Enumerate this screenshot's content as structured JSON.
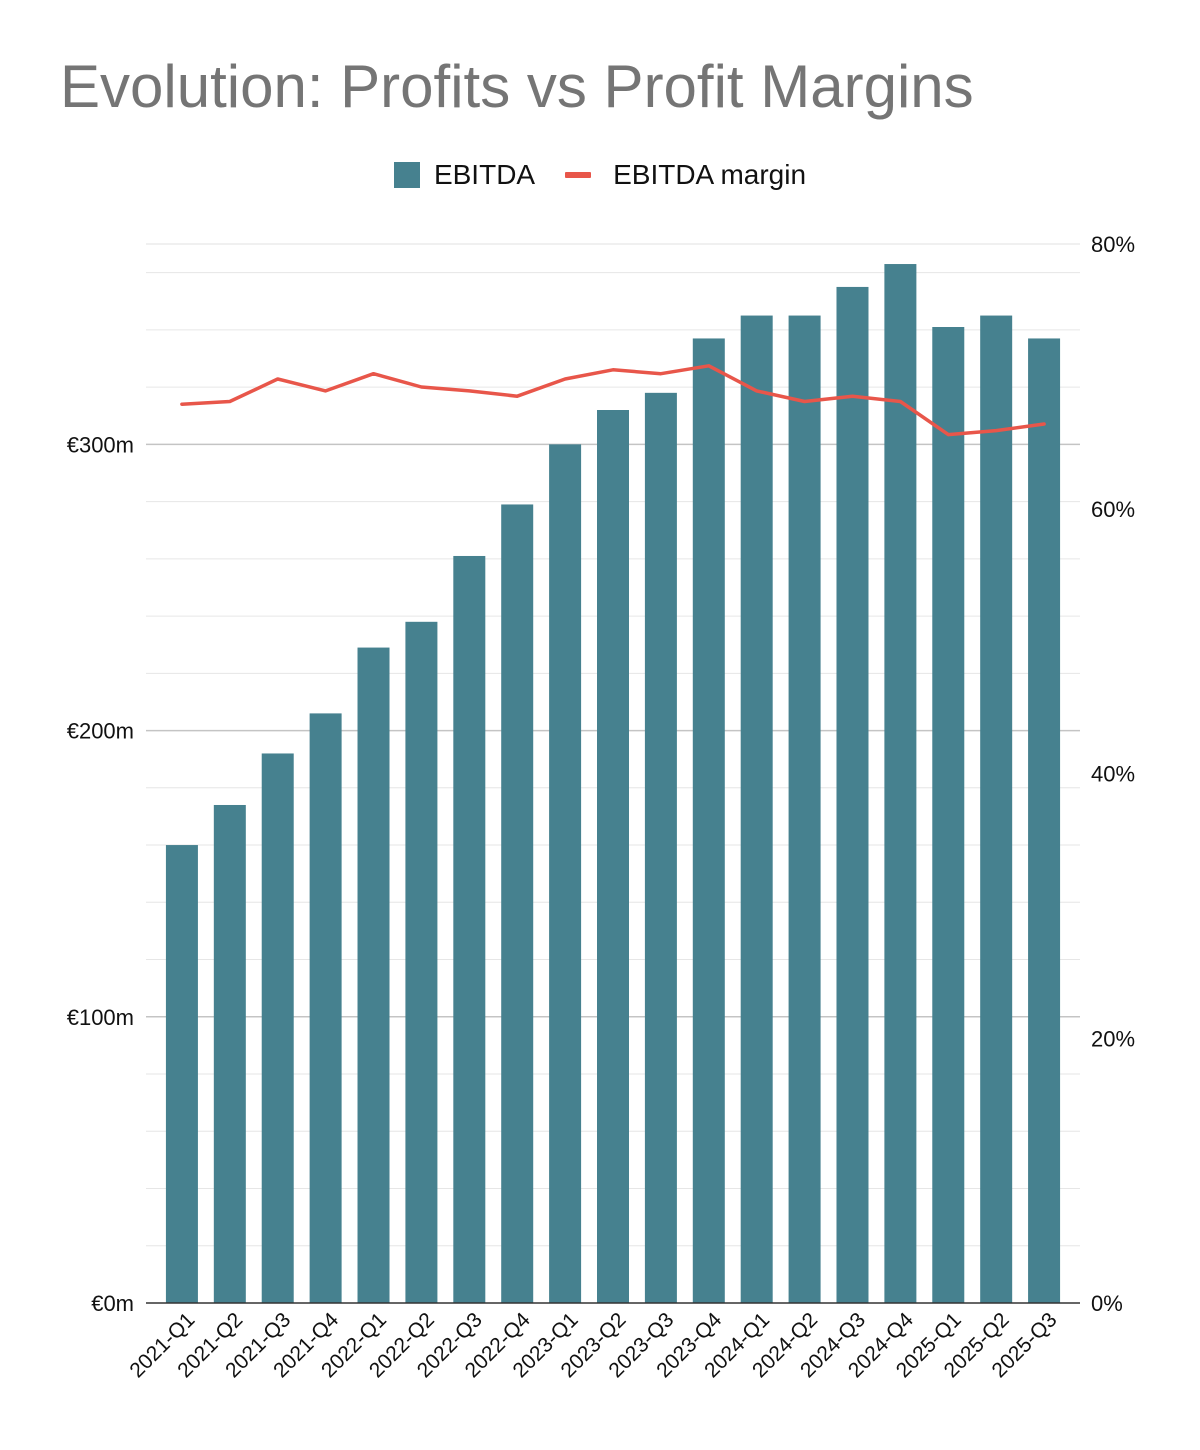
{
  "chart_data": {
    "type": "bar",
    "title": "Evolution: Profits vs Profit Margins",
    "categories": [
      "2021-Q1",
      "2021-Q2",
      "2021-Q3",
      "2021-Q4",
      "2022-Q1",
      "2022-Q2",
      "2022-Q3",
      "2022-Q4",
      "2023-Q1",
      "2023-Q2",
      "2023-Q3",
      "2023-Q4",
      "2024-Q1",
      "2024-Q2",
      "2024-Q3",
      "2024-Q4",
      "2025-Q1",
      "2025-Q2",
      "2025-Q3"
    ],
    "series": [
      {
        "name": "EBITDA",
        "type": "bar",
        "axis": "left",
        "color": "#46818f",
        "values": [
          160,
          174,
          192,
          206,
          229,
          238,
          261,
          279,
          300,
          312,
          318,
          337,
          345,
          345,
          355,
          363,
          341,
          345,
          337
        ]
      },
      {
        "name": "EBITDA margin",
        "type": "line",
        "axis": "right",
        "color": "#e8564a",
        "values": [
          67.9,
          68.1,
          69.8,
          68.9,
          70.2,
          69.2,
          68.9,
          68.5,
          69.8,
          70.5,
          70.2,
          70.8,
          68.9,
          68.1,
          68.5,
          68.1,
          65.6,
          65.9,
          66.4
        ]
      }
    ],
    "y_left": {
      "min": 0,
      "max": 370,
      "ticks": [
        0,
        100,
        200,
        300
      ],
      "tick_labels": [
        "€0m",
        "€100m",
        "€200m",
        "€300m"
      ]
    },
    "y_right": {
      "min": 0,
      "max": 80,
      "ticks": [
        0,
        20,
        40,
        60,
        80
      ],
      "tick_labels": [
        "0%",
        "20%",
        "40%",
        "60%",
        "80%"
      ]
    },
    "grid": true,
    "legend": "top-center"
  }
}
